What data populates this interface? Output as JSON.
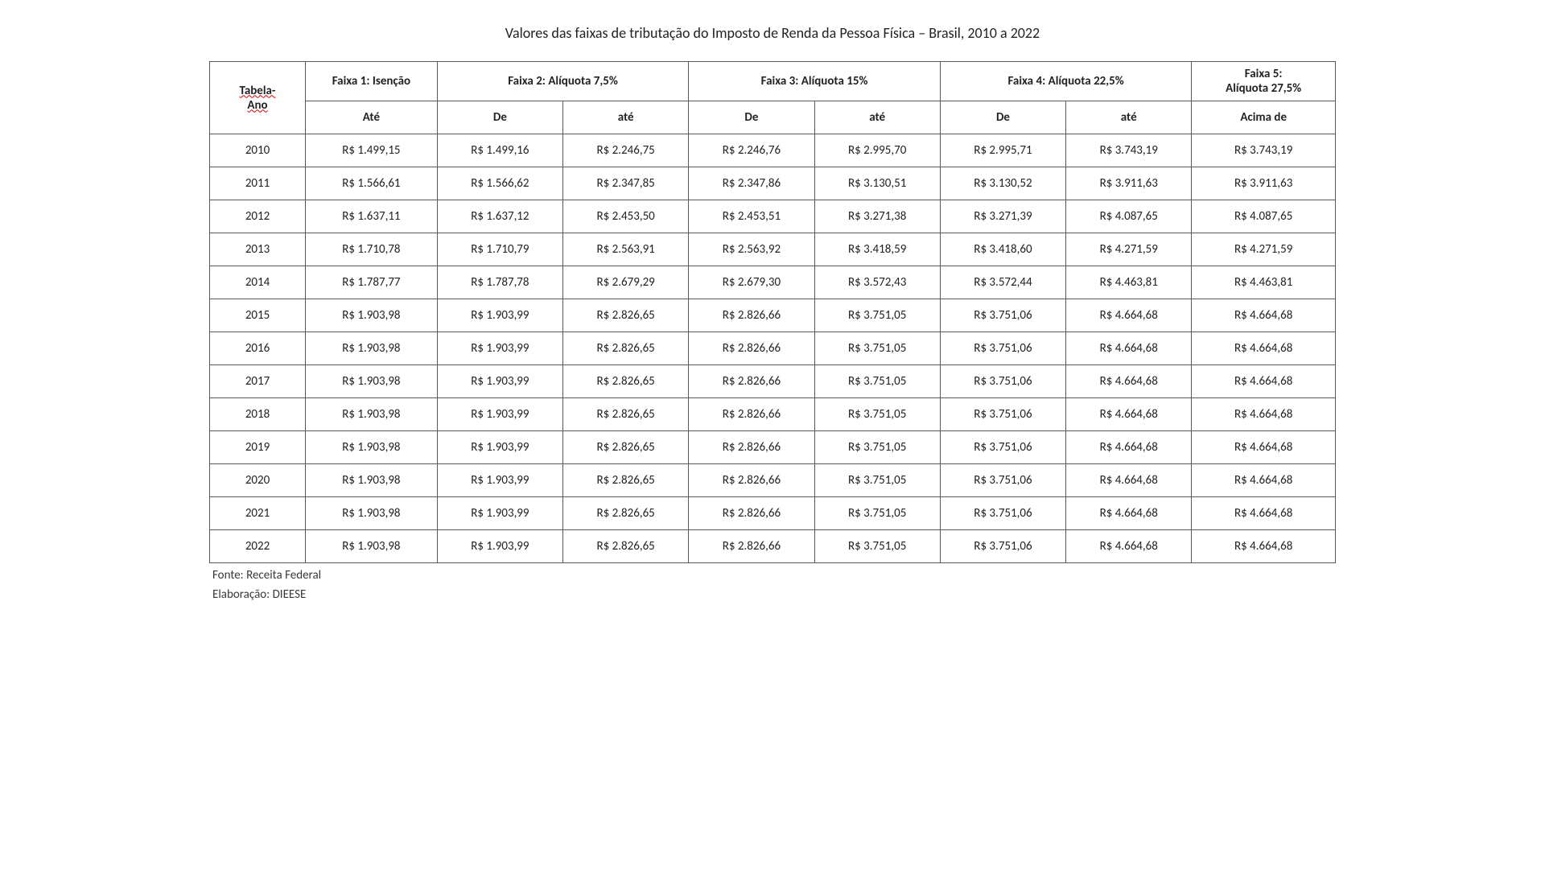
{
  "title": "Valores das faixas de tributação do Imposto de Renda da Pessoa Física – Brasil, 2010 a 2022",
  "headers": {
    "tabela_ano_1": "Tabela-",
    "tabela_ano_2": "Ano",
    "faixa1": "Faixa 1: Isenção",
    "faixa2": "Faixa 2: Alíquota 7,5%",
    "faixa3": "Faixa 3: Alíquota 15%",
    "faixa4": "Faixa 4: Alíquota 22,5%",
    "faixa5_l1": "Faixa 5:",
    "faixa5_l2": "Alíquota 27,5%",
    "ate": "Até",
    "de": "De",
    "ate2": "até",
    "acima": "Acima de"
  },
  "table": {
    "type": "table",
    "columns": [
      "Ano",
      "Faixa1 Até",
      "Faixa2 De",
      "Faixa2 até",
      "Faixa3 De",
      "Faixa3 até",
      "Faixa4 De",
      "Faixa4 até",
      "Faixa5 Acima de"
    ],
    "rows": [
      [
        "2010",
        "R$ 1.499,15",
        "R$ 1.499,16",
        "R$ 2.246,75",
        "R$ 2.246,76",
        "R$ 2.995,70",
        "R$ 2.995,71",
        "R$ 3.743,19",
        "R$ 3.743,19"
      ],
      [
        "2011",
        "R$ 1.566,61",
        "R$ 1.566,62",
        "R$ 2.347,85",
        "R$ 2.347,86",
        "R$ 3.130,51",
        "R$ 3.130,52",
        "R$ 3.911,63",
        "R$ 3.911,63"
      ],
      [
        "2012",
        "R$ 1.637,11",
        "R$ 1.637,12",
        "R$ 2.453,50",
        "R$ 2.453,51",
        "R$ 3.271,38",
        "R$ 3.271,39",
        "R$ 4.087,65",
        "R$ 4.087,65"
      ],
      [
        "2013",
        "R$ 1.710,78",
        "R$ 1.710,79",
        "R$ 2.563,91",
        "R$ 2.563,92",
        "R$ 3.418,59",
        "R$ 3.418,60",
        "R$ 4.271,59",
        "R$ 4.271,59"
      ],
      [
        "2014",
        "R$ 1.787,77",
        "R$ 1.787,78",
        "R$ 2.679,29",
        "R$ 2.679,30",
        "R$ 3.572,43",
        "R$ 3.572,44",
        "R$ 4.463,81",
        "R$ 4.463,81"
      ],
      [
        "2015",
        "R$ 1.903,98",
        "R$ 1.903,99",
        "R$ 2.826,65",
        "R$ 2.826,66",
        "R$ 3.751,05",
        "R$ 3.751,06",
        "R$ 4.664,68",
        "R$ 4.664,68"
      ],
      [
        "2016",
        "R$ 1.903,98",
        "R$ 1.903,99",
        "R$ 2.826,65",
        "R$ 2.826,66",
        "R$ 3.751,05",
        "R$ 3.751,06",
        "R$ 4.664,68",
        "R$ 4.664,68"
      ],
      [
        "2017",
        "R$ 1.903,98",
        "R$ 1.903,99",
        "R$ 2.826,65",
        "R$ 2.826,66",
        "R$ 3.751,05",
        "R$ 3.751,06",
        "R$ 4.664,68",
        "R$ 4.664,68"
      ],
      [
        "2018",
        "R$ 1.903,98",
        "R$ 1.903,99",
        "R$ 2.826,65",
        "R$ 2.826,66",
        "R$ 3.751,05",
        "R$ 3.751,06",
        "R$ 4.664,68",
        "R$ 4.664,68"
      ],
      [
        "2019",
        "R$ 1.903,98",
        "R$ 1.903,99",
        "R$ 2.826,65",
        "R$ 2.826,66",
        "R$ 3.751,05",
        "R$ 3.751,06",
        "R$ 4.664,68",
        "R$ 4.664,68"
      ],
      [
        "2020",
        "R$ 1.903,98",
        "R$ 1.903,99",
        "R$ 2.826,65",
        "R$ 2.826,66",
        "R$ 3.751,05",
        "R$ 3.751,06",
        "R$ 4.664,68",
        "R$ 4.664,68"
      ],
      [
        "2021",
        "R$ 1.903,98",
        "R$ 1.903,99",
        "R$ 2.826,65",
        "R$ 2.826,66",
        "R$ 3.751,05",
        "R$ 3.751,06",
        "R$ 4.664,68",
        "R$ 4.664,68"
      ],
      [
        "2022",
        "R$ 1.903,98",
        "R$ 1.903,99",
        "R$ 2.826,65",
        "R$ 2.826,66",
        "R$ 3.751,05",
        "R$ 3.751,06",
        "R$ 4.664,68",
        "R$ 4.664,68"
      ]
    ],
    "border_color": "#595959",
    "background_color": "#ffffff",
    "header_fontweight": "bold",
    "cell_fontsize": 15
  },
  "footer": {
    "fonte": "Fonte: Receita Federal",
    "elab": "Elaboração: DIEESE"
  }
}
